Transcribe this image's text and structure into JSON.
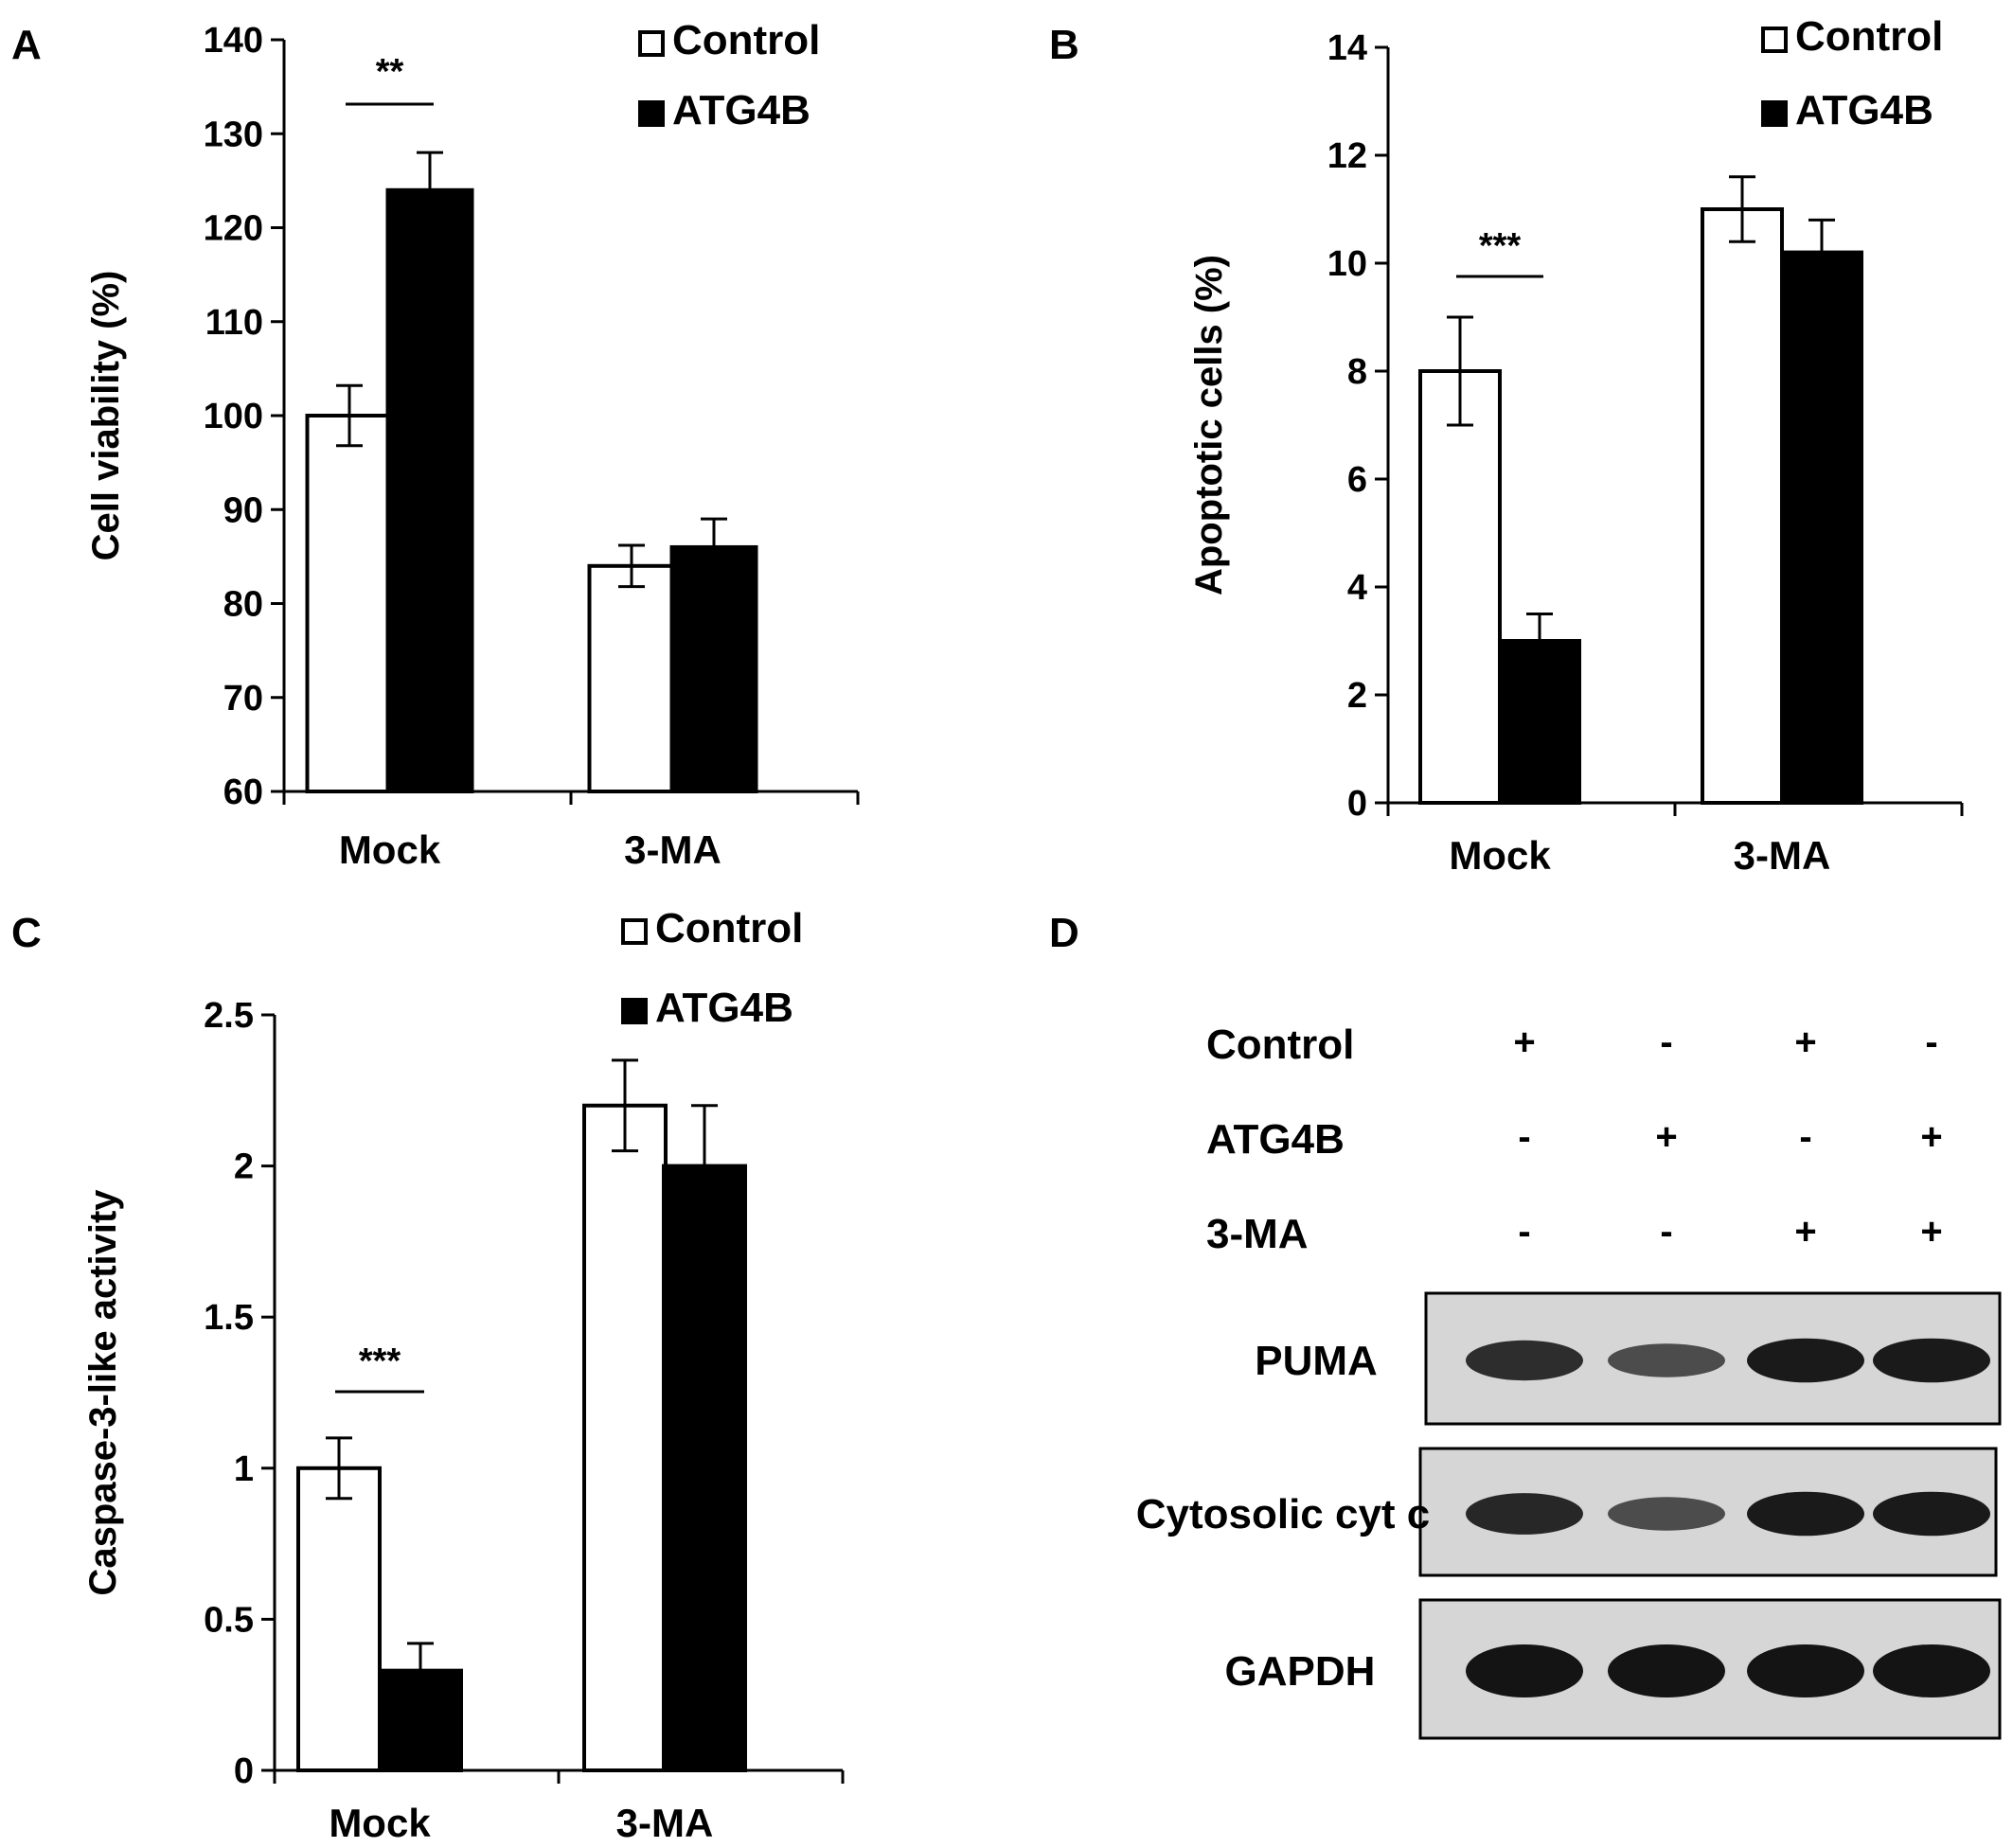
{
  "panels": {
    "A": "A",
    "B": "B",
    "C": "C",
    "D": "D"
  },
  "colors": {
    "control_fill": "#ffffff",
    "atg4b_fill": "#000000",
    "outline": "#000000",
    "blot_background": "#d6d6d6",
    "band": "#141414"
  },
  "chart_data": [
    {
      "panel": "A",
      "type": "bar",
      "categories": [
        "Mock",
        "3-MA"
      ],
      "ylabel": "Cell viability (%)",
      "xlabel": "",
      "ylim": [
        60,
        140
      ],
      "yticks": [
        "60",
        "70",
        "80",
        "90",
        "100",
        "110",
        "120",
        "130",
        "140"
      ],
      "series": [
        {
          "name": "Control",
          "values": [
            100,
            84
          ],
          "errors": [
            3.2,
            2.2
          ]
        },
        {
          "name": "ATG4B",
          "values": [
            124,
            86
          ],
          "errors": [
            4,
            3
          ]
        }
      ],
      "significance": [
        {
          "category": "Mock",
          "label": "**"
        }
      ],
      "legend": "top-right",
      "grid": false
    },
    {
      "panel": "B",
      "type": "bar",
      "categories": [
        "Mock",
        "3-MA"
      ],
      "ylabel": "Apoptotic cells (%)",
      "xlabel": "",
      "ylim": [
        0,
        14
      ],
      "yticks": [
        "0",
        "2",
        "4",
        "6",
        "8",
        "10",
        "12",
        "14"
      ],
      "series": [
        {
          "name": "Control",
          "values": [
            8,
            11
          ],
          "errors": [
            1.0,
            0.6
          ]
        },
        {
          "name": "ATG4B",
          "values": [
            3,
            10.2
          ],
          "errors": [
            0.5,
            0.6
          ]
        }
      ],
      "significance": [
        {
          "category": "Mock",
          "label": "***"
        }
      ],
      "legend": "top-right",
      "grid": false
    },
    {
      "panel": "C",
      "type": "bar",
      "categories": [
        "Mock",
        "3-MA"
      ],
      "ylabel": "Caspase-3-like activity",
      "xlabel": "",
      "ylim": [
        0,
        2.5
      ],
      "yticks": [
        "0",
        "0.5",
        "1",
        "1.5",
        "2",
        "2.5"
      ],
      "series": [
        {
          "name": "Control",
          "values": [
            1.0,
            2.2
          ],
          "errors": [
            0.1,
            0.15
          ]
        },
        {
          "name": "ATG4B",
          "values": [
            0.33,
            2.0
          ],
          "errors": [
            0.09,
            0.2
          ]
        }
      ],
      "significance": [
        {
          "category": "Mock",
          "label": "***"
        }
      ],
      "legend": "top-right",
      "grid": false
    }
  ],
  "blot": {
    "conditions": [
      {
        "label": "Control",
        "signs": [
          "+",
          "-",
          "+",
          "-"
        ]
      },
      {
        "label": "ATG4B",
        "signs": [
          "-",
          "+",
          "-",
          "+"
        ]
      },
      {
        "label": "3-MA",
        "signs": [
          "-",
          "-",
          "+",
          "+"
        ]
      }
    ],
    "rows": [
      {
        "label": "PUMA",
        "intensities": [
          0.8,
          0.55,
          0.95,
          0.95
        ]
      },
      {
        "label": "Cytosolic cyt c",
        "intensities": [
          0.85,
          0.55,
          0.95,
          0.95
        ]
      },
      {
        "label": "GAPDH",
        "intensities": [
          1.0,
          1.0,
          1.0,
          1.0
        ]
      }
    ]
  }
}
